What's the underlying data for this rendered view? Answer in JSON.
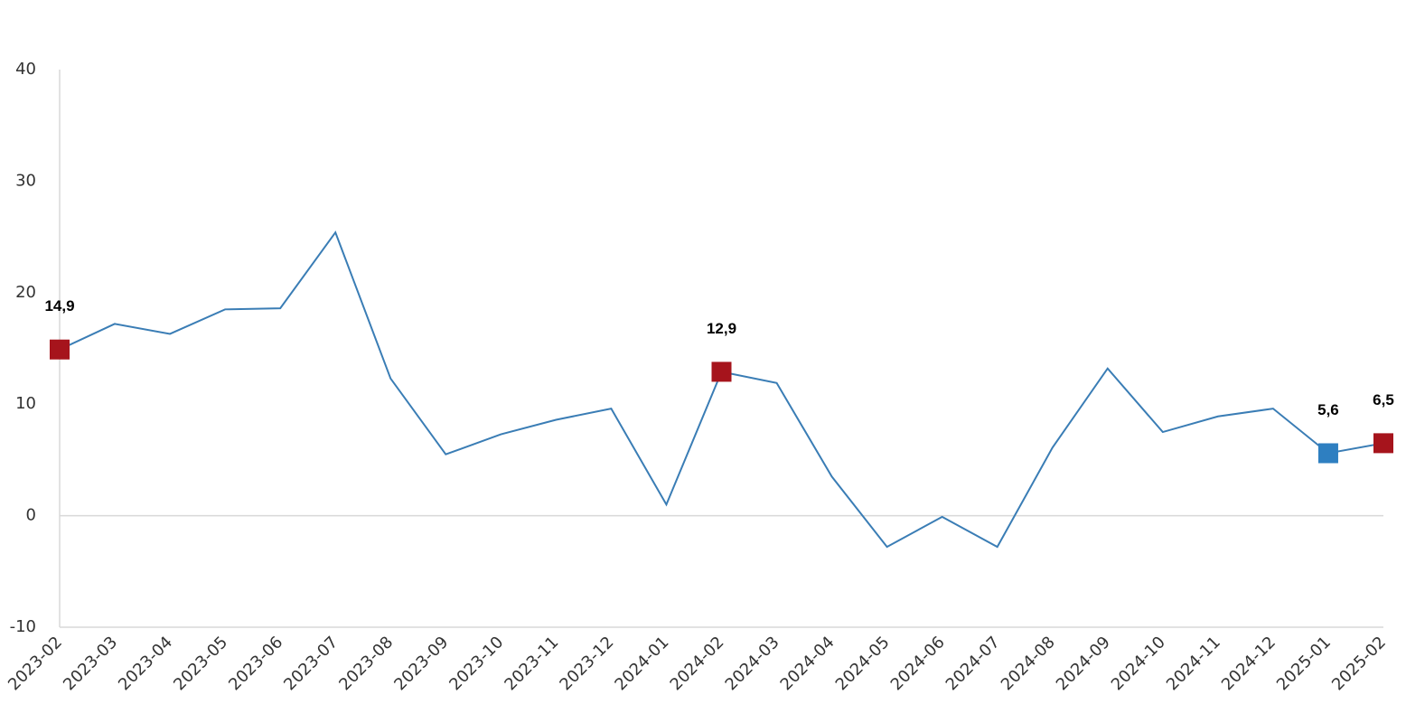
{
  "chart_data": {
    "type": "line",
    "categories": [
      "2023-02",
      "2023-03",
      "2023-04",
      "2023-05",
      "2023-06",
      "2023-07",
      "2023-08",
      "2023-09",
      "2023-10",
      "2023-11",
      "2023-12",
      "2024-01",
      "2024-02",
      "2024-03",
      "2024-04",
      "2024-05",
      "2024-06",
      "2024-07",
      "2024-08",
      "2024-09",
      "2024-10",
      "2024-11",
      "2024-12",
      "2025-01",
      "2025-02"
    ],
    "series": [
      {
        "color": "#3a7db5",
        "values": [
          14.9,
          17.2,
          16.3,
          18.5,
          18.6,
          25.4,
          12.3,
          5.5,
          7.3,
          8.6,
          9.6,
          1.0,
          12.9,
          11.9,
          3.5,
          -2.8,
          -0.1,
          -2.8,
          6.1,
          13.2,
          7.5,
          8.9,
          9.6,
          5.6,
          6.5
        ],
        "value_labels": [
          "14,9",
          null,
          null,
          null,
          null,
          null,
          null,
          null,
          null,
          null,
          null,
          null,
          "12,9",
          null,
          null,
          null,
          null,
          null,
          null,
          null,
          null,
          null,
          null,
          "5,6",
          "6,5"
        ],
        "marker_colors": [
          "#a6141c",
          null,
          null,
          null,
          null,
          null,
          null,
          null,
          null,
          null,
          null,
          null,
          "#a6141c",
          null,
          null,
          null,
          null,
          null,
          null,
          null,
          null,
          null,
          null,
          "#2e7fc1",
          "#a6141c"
        ]
      }
    ],
    "ylim": [
      -10,
      40
    ],
    "yticks": [
      -10,
      0,
      10,
      20,
      30,
      40
    ],
    "zero_line": true
  }
}
